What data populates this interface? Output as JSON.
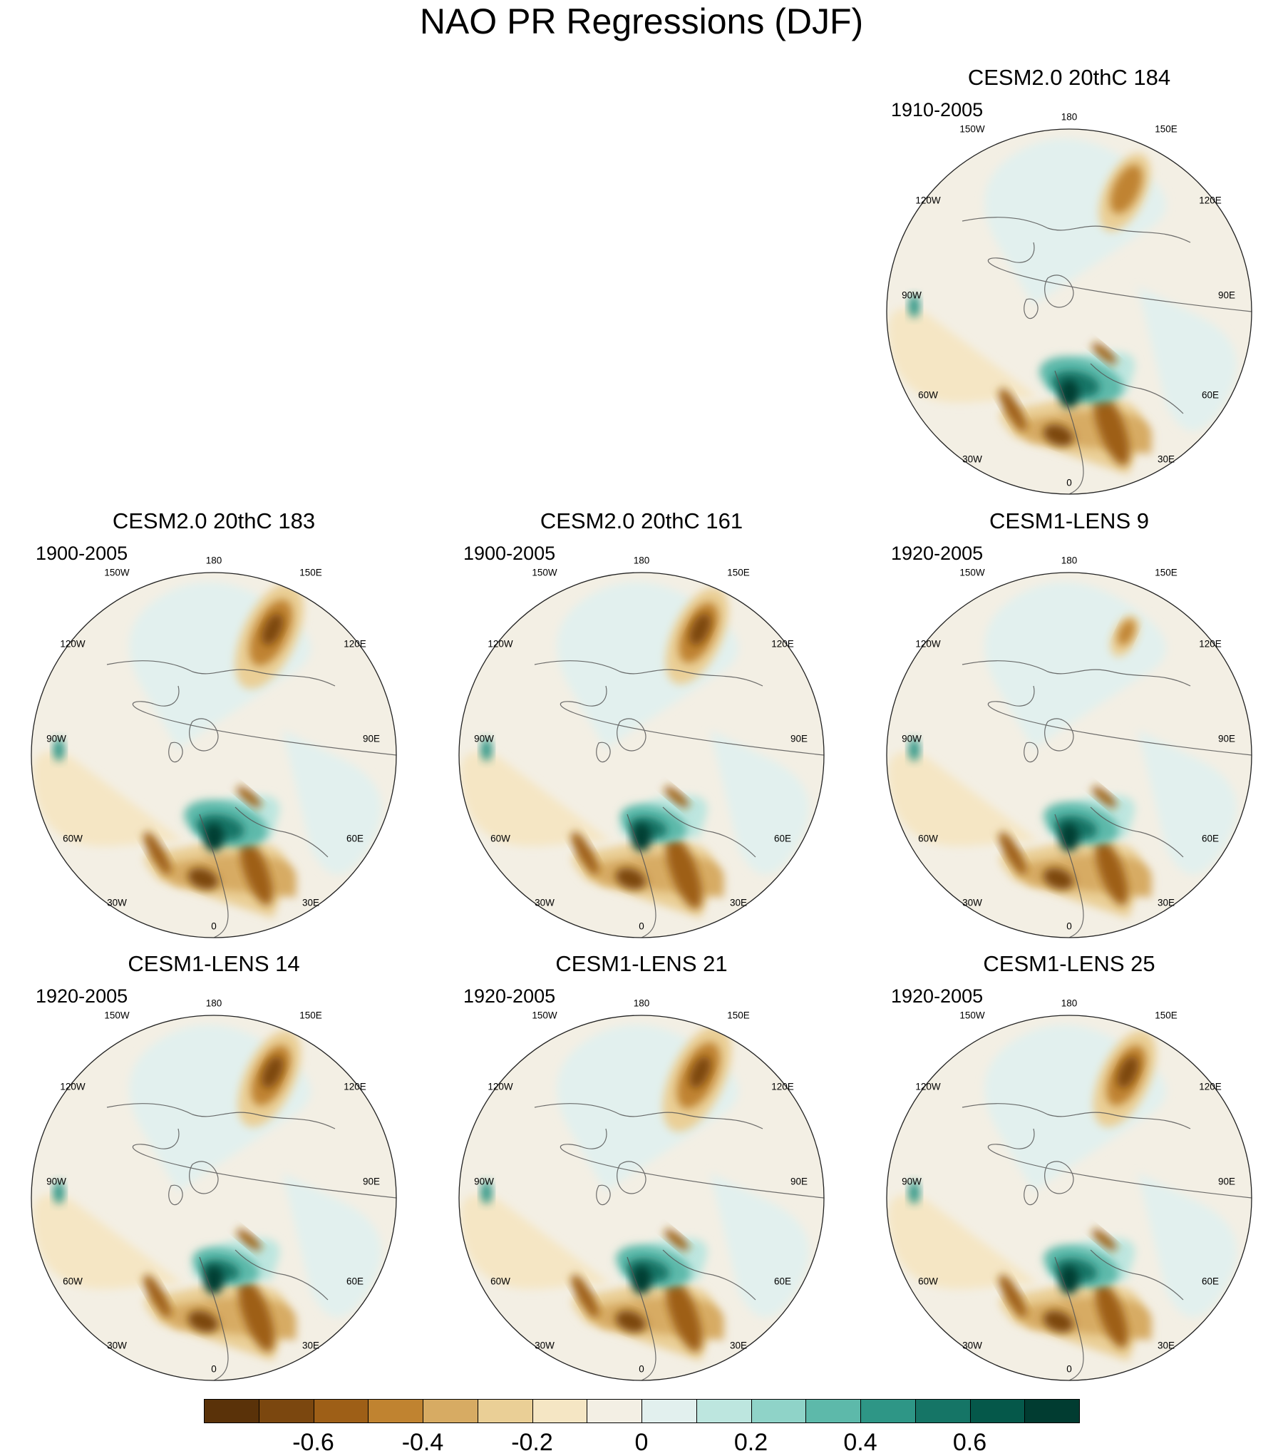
{
  "figure": {
    "title": "NAO PR Regressions (DJF)"
  },
  "panels": [
    {
      "id": "p184",
      "title": "CESM2.0 20thC 184",
      "period": "1910-2005"
    },
    {
      "id": "p183",
      "title": "CESM2.0 20thC 183",
      "period": "1900-2005"
    },
    {
      "id": "p161",
      "title": "CESM2.0 20thC 161",
      "period": "1900-2005"
    },
    {
      "id": "pL9",
      "title": "CESM1-LENS 9",
      "period": "1920-2005"
    },
    {
      "id": "pL14",
      "title": "CESM1-LENS 14",
      "period": "1920-2005"
    },
    {
      "id": "pL21",
      "title": "CESM1-LENS 21",
      "period": "1920-2005"
    },
    {
      "id": "pL25",
      "title": "CESM1-LENS 25",
      "period": "1920-2005"
    }
  ],
  "longitude_labels": [
    "180",
    "150E",
    "120E",
    "90E",
    "60E",
    "30E",
    "0",
    "30W",
    "60W",
    "90W",
    "120W",
    "150W"
  ],
  "colorbar": {
    "colors": [
      "#5a3209",
      "#7b470f",
      "#9e5f17",
      "#c08330",
      "#d7ab63",
      "#eacf96",
      "#f5e6c4",
      "#f3efe4",
      "#e2f0ee",
      "#bde6df",
      "#8fd3c8",
      "#5db9aa",
      "#2e9686",
      "#157566",
      "#05584a",
      "#013c31"
    ],
    "tick_labels": [
      "-0.6",
      "-0.4",
      "-0.2",
      "0",
      "0.2",
      "0.4",
      "0.6"
    ]
  }
}
